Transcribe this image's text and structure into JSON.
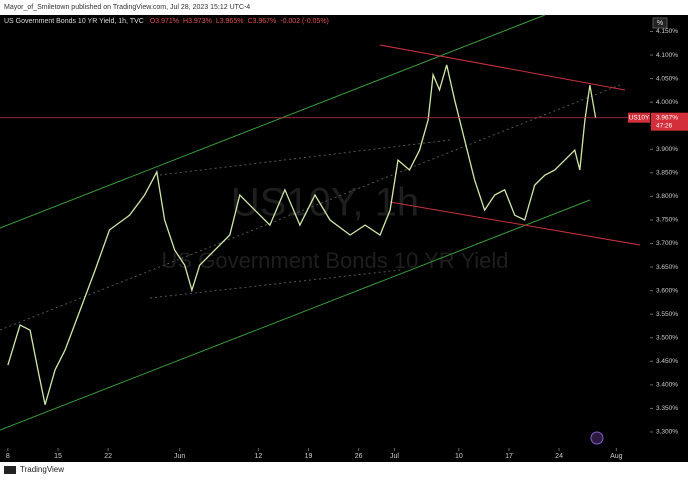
{
  "chart_data": {
    "type": "line",
    "header": "Mayor_of_Smiletown published on TradingView.com, Jul 28, 2023 15:12 UTC-4",
    "title": "US Government Bonds 10 YR Yield, 1h, TVC",
    "legend_values": [
      "O3.971%",
      "H3.973%",
      "L3.965%",
      "C3.967%",
      "-0.002 (-0.05%)"
    ],
    "watermark": [
      "US10Y, 1h",
      "US Government Bonds 10 YR Yield"
    ],
    "scale_button": "%",
    "symbol": "US10Y",
    "last_price": {
      "value": 3.967,
      "label": "3.967%"
    },
    "countdown": "47:26",
    "footer": "TradingView",
    "x": [
      0,
      1.7,
      3.1,
      4.2,
      5.2,
      6.6,
      8.0,
      10.1,
      12.2,
      14.2,
      17.0,
      19.1,
      20.8,
      21.9,
      23.3,
      24.7,
      25.7,
      26.8,
      28.9,
      31.0,
      32.4,
      34.5,
      36.6,
      38.7,
      40.8,
      42.9,
      45.0,
      47.8,
      49.9,
      52.0,
      53.4,
      54.5,
      56.1,
      57.5,
      58.7,
      59.4,
      60.3,
      61.3,
      62.4,
      63.8,
      65.2,
      66.6,
      68.0,
      69.4,
      70.8,
      72.2,
      73.6,
      75.0,
      76.4,
      77.8,
      79.2,
      79.9,
      80.6,
      81.3,
      82.1
    ],
    "series": [
      {
        "name": "US10Y",
        "color": "#cfe8a8",
        "values": [
          3.442,
          3.527,
          3.516,
          3.432,
          3.358,
          3.432,
          3.474,
          3.559,
          3.644,
          3.729,
          3.76,
          3.803,
          3.852,
          3.75,
          3.686,
          3.654,
          3.601,
          3.654,
          3.686,
          3.718,
          3.803,
          3.771,
          3.739,
          3.814,
          3.739,
          3.803,
          3.75,
          3.718,
          3.739,
          3.718,
          3.771,
          3.877,
          3.856,
          3.898,
          3.962,
          4.058,
          4.026,
          4.079,
          4.005,
          3.92,
          3.835,
          3.771,
          3.803,
          3.814,
          3.76,
          3.75,
          3.824,
          3.845,
          3.856,
          3.877,
          3.898,
          3.856,
          3.962,
          4.036,
          3.967
        ]
      }
    ],
    "xlim": [
      -1.1,
      89.7
    ],
    "xticks": [
      {
        "value": 0,
        "label": "8"
      },
      {
        "value": 7,
        "label": "15"
      },
      {
        "value": 14,
        "label": "22"
      },
      {
        "value": 24,
        "label": "Jun"
      },
      {
        "value": 35,
        "label": "12"
      },
      {
        "value": 42,
        "label": "19"
      },
      {
        "value": 49,
        "label": "26"
      },
      {
        "value": 54,
        "label": "Jul"
      },
      {
        "value": 63,
        "label": "10"
      },
      {
        "value": 70,
        "label": "17"
      },
      {
        "value": 77,
        "label": "24"
      },
      {
        "value": 85,
        "label": "Aug"
      }
    ],
    "ylim": [
      3.266,
      4.185
    ],
    "yticks": [
      {
        "value": 3.3,
        "label": "3.300%"
      },
      {
        "value": 3.35,
        "label": "3.350%"
      },
      {
        "value": 3.4,
        "label": "3.400%"
      },
      {
        "value": 3.45,
        "label": "3.450%"
      },
      {
        "value": 3.5,
        "label": "3.500%"
      },
      {
        "value": 3.55,
        "label": "3.550%"
      },
      {
        "value": 3.6,
        "label": "3.600%"
      },
      {
        "value": 3.65,
        "label": "3.650%"
      },
      {
        "value": 3.7,
        "label": "3.700%"
      },
      {
        "value": 3.75,
        "label": "3.750%"
      },
      {
        "value": 3.8,
        "label": "3.800%"
      },
      {
        "value": 3.85,
        "label": "3.850%"
      },
      {
        "value": 3.9,
        "label": "3.900%"
      },
      {
        "value": 3.95,
        "label": "3.950%"
      },
      {
        "value": 4.0,
        "label": "4.000%"
      },
      {
        "value": 4.05,
        "label": "4.050%"
      },
      {
        "value": 4.1,
        "label": "4.100%"
      },
      {
        "value": 4.15,
        "label": "4.150%"
      }
    ],
    "grid": false
  }
}
